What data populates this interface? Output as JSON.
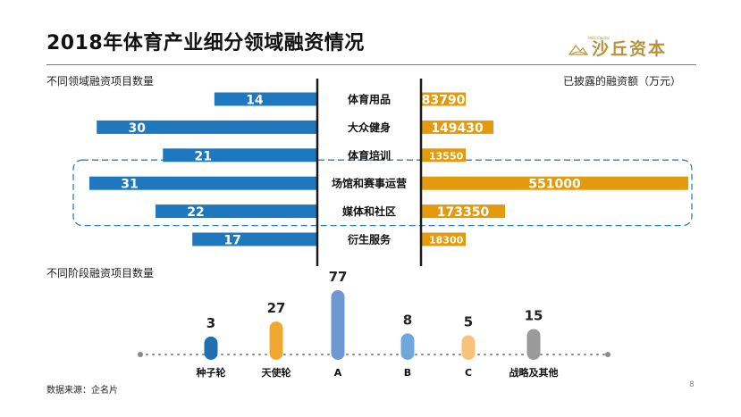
{
  "title": "2018年体育产业细分领域融资情况",
  "logo": {
    "name": "沙丘资本",
    "small": "H&S Capital"
  },
  "labels": {
    "left_header": "不同领域融资项目数量",
    "right_header": "已披露的融资额（万元）",
    "stage_header": "不同阶段融资项目数量",
    "source": "数据来源：企名片",
    "page": "8"
  },
  "colors": {
    "blue": "#1f78be",
    "orange": "#e39a0f",
    "divider": "#1a1a1a",
    "highlight": "#2e7fbf"
  },
  "chart_data": [
    {
      "type": "bar",
      "orientation": "horizontal",
      "categories": [
        "体育用品",
        "大众健身",
        "体育培训",
        "场馆和赛事运营",
        "媒体和社区",
        "衍生服务"
      ],
      "series": [
        {
          "values": [
            14,
            30,
            21,
            31,
            22,
            17
          ]
        },
        {
          "values": [
            83790,
            149430,
            13550,
            551000,
            173350,
            18300
          ]
        }
      ],
      "highlighted": [
        "场馆和赛事运营",
        "媒体和社区"
      ]
    },
    {
      "type": "bar",
      "categories": [
        "种子轮",
        "天使轮",
        "A",
        "B",
        "C",
        "战略及其他"
      ],
      "values": [
        3,
        27,
        77,
        8,
        5,
        15
      ],
      "colors": [
        "#1f6fb2",
        "#f0a830",
        "#7098d0",
        "#6fa8dc",
        "#f7c27a",
        "#9a9a9a"
      ]
    }
  ]
}
